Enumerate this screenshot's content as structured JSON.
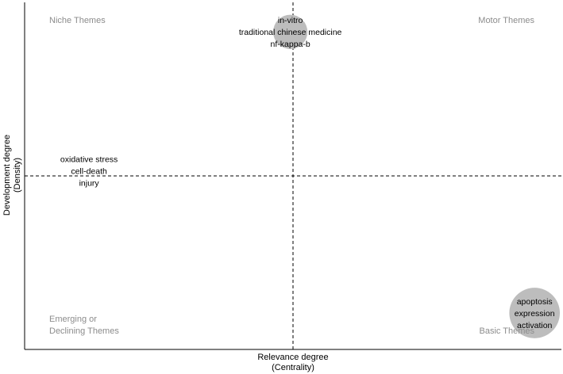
{
  "chart_data": {
    "type": "scatter",
    "xlabel": "Relevance degree",
    "xlabel_sub": "(Centrality)",
    "ylabel": "Development degree",
    "ylabel_sub": "(Density)",
    "xlim": [
      0,
      100
    ],
    "ylim": [
      0,
      100
    ],
    "divider_x": 50,
    "divider_y": 50,
    "grid": false,
    "quadrants": {
      "top_left": [
        "Niche Themes"
      ],
      "top_right": [
        "Motor Themes"
      ],
      "bottom_left": [
        "Emerging or",
        "Declining Themes"
      ],
      "bottom_right": [
        "Basic Themes"
      ]
    },
    "clusters": [
      {
        "labels": [
          "in-vitro",
          "traditional chinese medicine",
          "nf-kappa-b"
        ],
        "x": 49.5,
        "y": 91.5,
        "size": 4
      },
      {
        "labels": [
          "oxidative stress",
          "cell-death",
          "injury"
        ],
        "x": 12,
        "y": 51.5,
        "size": 0
      },
      {
        "labels": [
          "apoptosis",
          "expression",
          "activation"
        ],
        "x": 95,
        "y": 10.5,
        "size": 10
      }
    ],
    "colors": {
      "bubble": "#bdbdbd",
      "quadrant_text": "#8c8c8c",
      "divider": "#000000"
    }
  }
}
